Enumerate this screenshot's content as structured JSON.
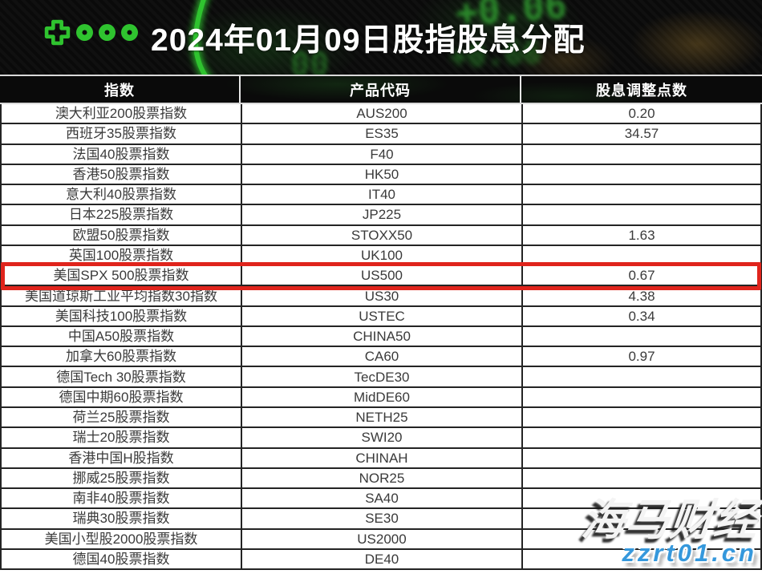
{
  "banner": {
    "title": "2024年01月09日股指股息分配",
    "logo_icons": [
      "plus-icon",
      "dot",
      "dot",
      "dot"
    ],
    "background_ticker_values": [
      "+0.06",
      "+0.66",
      "00"
    ]
  },
  "table": {
    "headers": [
      "指数",
      "产品代码",
      "股息调整点数"
    ],
    "rows": [
      {
        "index_name": "澳大利亚200股票指数",
        "code": "AUS200",
        "dividend": "0.20",
        "highlighted": false
      },
      {
        "index_name": "西班牙35股票指数",
        "code": "ES35",
        "dividend": "34.57",
        "highlighted": false
      },
      {
        "index_name": "法国40股票指数",
        "code": "F40",
        "dividend": "",
        "highlighted": false
      },
      {
        "index_name": "香港50股票指数",
        "code": "HK50",
        "dividend": "",
        "highlighted": false
      },
      {
        "index_name": "意大利40股票指数",
        "code": "IT40",
        "dividend": "",
        "highlighted": false
      },
      {
        "index_name": "日本225股票指数",
        "code": "JP225",
        "dividend": "",
        "highlighted": false
      },
      {
        "index_name": "欧盟50股票指数",
        "code": "STOXX50",
        "dividend": "1.63",
        "highlighted": false
      },
      {
        "index_name": "英国100股票指数",
        "code": "UK100",
        "dividend": "",
        "highlighted": false
      },
      {
        "index_name": "美国SPX 500股票指数",
        "code": "US500",
        "dividend": "0.67",
        "highlighted": true
      },
      {
        "index_name": "美国道琼斯工业平均指数30指数",
        "code": "US30",
        "dividend": "4.38",
        "highlighted": false
      },
      {
        "index_name": "美国科技100股票指数",
        "code": "USTEC",
        "dividend": "0.34",
        "highlighted": false
      },
      {
        "index_name": "中国A50股票指数",
        "code": "CHINA50",
        "dividend": "",
        "highlighted": false
      },
      {
        "index_name": "加拿大60股票指数",
        "code": "CA60",
        "dividend": "0.97",
        "highlighted": false
      },
      {
        "index_name": "德国Tech 30股票指数",
        "code": "TecDE30",
        "dividend": "",
        "highlighted": false
      },
      {
        "index_name": "德国中期60股票指数",
        "code": "MidDE60",
        "dividend": "",
        "highlighted": false
      },
      {
        "index_name": "荷兰25股票指数",
        "code": "NETH25",
        "dividend": "",
        "highlighted": false
      },
      {
        "index_name": "瑞士20股票指数",
        "code": "SWI20",
        "dividend": "",
        "highlighted": false
      },
      {
        "index_name": "香港中国H股指数",
        "code": "CHINAH",
        "dividend": "",
        "highlighted": false
      },
      {
        "index_name": "挪威25股票指数",
        "code": "NOR25",
        "dividend": "",
        "highlighted": false
      },
      {
        "index_name": "南非40股票指数",
        "code": "SA40",
        "dividend": "",
        "highlighted": false
      },
      {
        "index_name": "瑞典30股票指数",
        "code": "SE30",
        "dividend": "",
        "highlighted": false
      },
      {
        "index_name": "美国小型股2000股票指数",
        "code": "US2000",
        "dividend": "",
        "highlighted": false
      },
      {
        "index_name": "德国40股票指数",
        "code": "DE40",
        "dividend": "",
        "highlighted": false
      }
    ]
  },
  "watermark": {
    "brand": "海马财经",
    "site": "zzrt01.cn"
  },
  "colors": {
    "accent_green": "#2fc32f",
    "red": "#e0241c",
    "site_blue": "#3598dc",
    "body_text": "#3a3a3a",
    "border_dark": "#242424"
  }
}
